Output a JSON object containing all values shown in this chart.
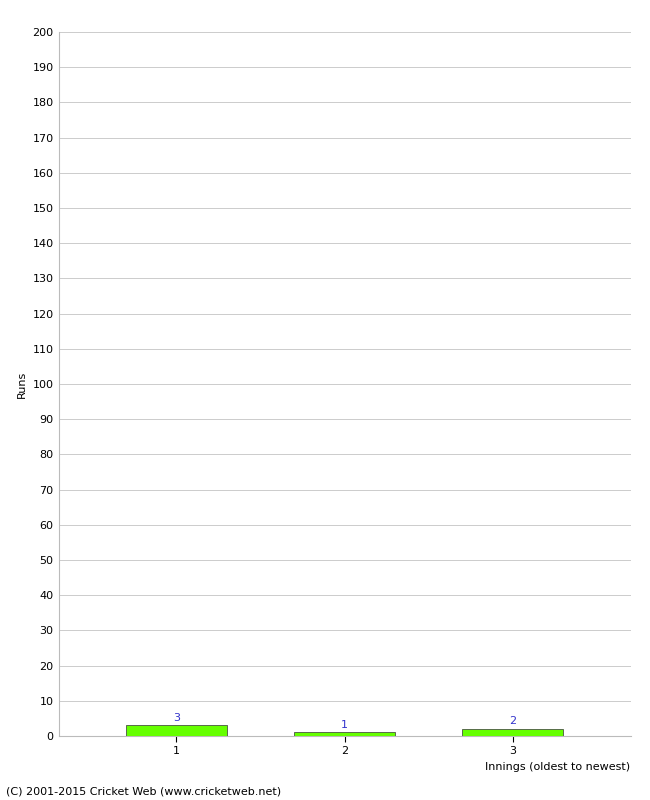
{
  "xlabel": "Innings (oldest to newest)",
  "ylabel": "Runs",
  "categories": [
    1,
    2,
    3
  ],
  "values": [
    3,
    1,
    2
  ],
  "bar_labels": [
    3,
    1,
    2
  ],
  "bar_color": "#66ff00",
  "bar_edge_color": "#333333",
  "ylim": [
    0,
    200
  ],
  "yticks": [
    0,
    10,
    20,
    30,
    40,
    50,
    60,
    70,
    80,
    90,
    100,
    110,
    120,
    130,
    140,
    150,
    160,
    170,
    180,
    190,
    200
  ],
  "xticks": [
    1,
    2,
    3
  ],
  "label_color": "#3333cc",
  "label_fontsize": 8,
  "axis_fontsize": 8,
  "tick_fontsize": 8,
  "footer": "(C) 2001-2015 Cricket Web (www.cricketweb.net)",
  "footer_fontsize": 8,
  "background_color": "#ffffff",
  "grid_color": "#cccccc",
  "bar_width": 0.6
}
